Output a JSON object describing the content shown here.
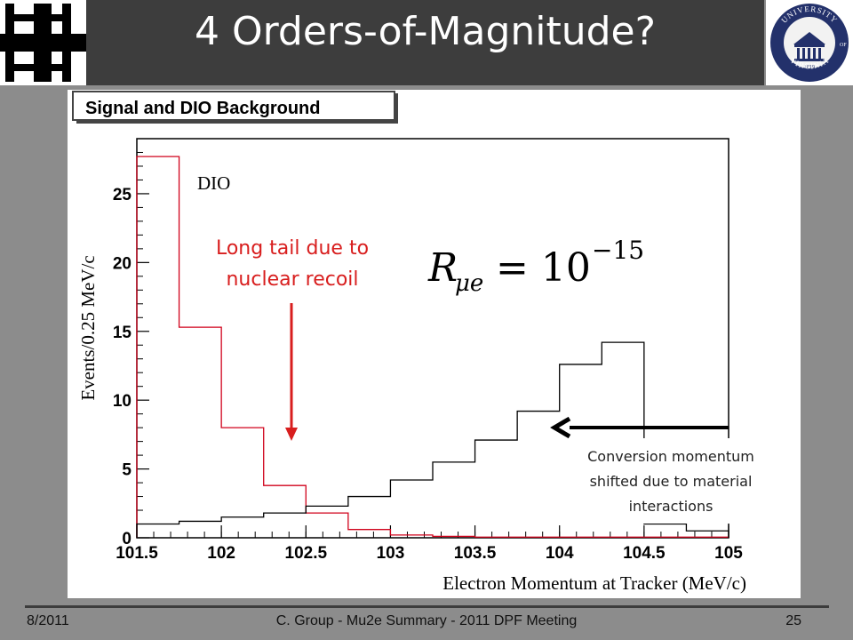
{
  "slide": {
    "title": "4 Orders-of-Magnitude?",
    "footer_date": "8/2011",
    "footer_center": "C. Group - Mu2e Summary - 2011 DPF Meeting",
    "page_number": "25"
  },
  "logos": {
    "left": "fermilab-logo",
    "right": "university-of-virginia-seal",
    "right_text": [
      "UNIVERSITY",
      "OF",
      "VIRGINIA",
      "1819"
    ]
  },
  "chart_data": {
    "type": "histogram",
    "title": "Signal and DIO Background",
    "xlabel": "Electron Momentum at Tracker (MeV/c)",
    "ylabel": "Events/0.25 MeV/c",
    "xlim": [
      101.5,
      105
    ],
    "ylim": [
      0,
      29
    ],
    "x_ticks": [
      101.5,
      102,
      102.5,
      103,
      103.5,
      104,
      104.5,
      105
    ],
    "y_ticks": [
      0,
      5,
      10,
      15,
      20,
      25
    ],
    "bin_edges": [
      101.5,
      101.75,
      102,
      102.25,
      102.5,
      102.75,
      103,
      103.25,
      103.5,
      103.75,
      104,
      104.25,
      104.5,
      104.75,
      105
    ],
    "series": [
      {
        "name": "DIO",
        "color": "#d0021b",
        "values": [
          27.7,
          15.3,
          8.0,
          3.8,
          1.8,
          0.6,
          0.2,
          0.1,
          0.05,
          0.05,
          0.05,
          0.05,
          0.05,
          0.05
        ]
      },
      {
        "name": "",
        "color": "#000000",
        "values": [
          1.0,
          1.2,
          1.5,
          1.8,
          2.3,
          3.0,
          4.2,
          5.5,
          7.1,
          9.2,
          12.6,
          14.2,
          1.0,
          0.5
        ]
      }
    ],
    "formula": "R_{μe} = 10^{-15}",
    "annotations": {
      "dio_label": "DIO",
      "tail_text": [
        "Long tail due to",
        "nuclear recoil"
      ],
      "conversion_text": [
        "Conversion momentum",
        "shifted due to material",
        "interactions"
      ]
    }
  }
}
